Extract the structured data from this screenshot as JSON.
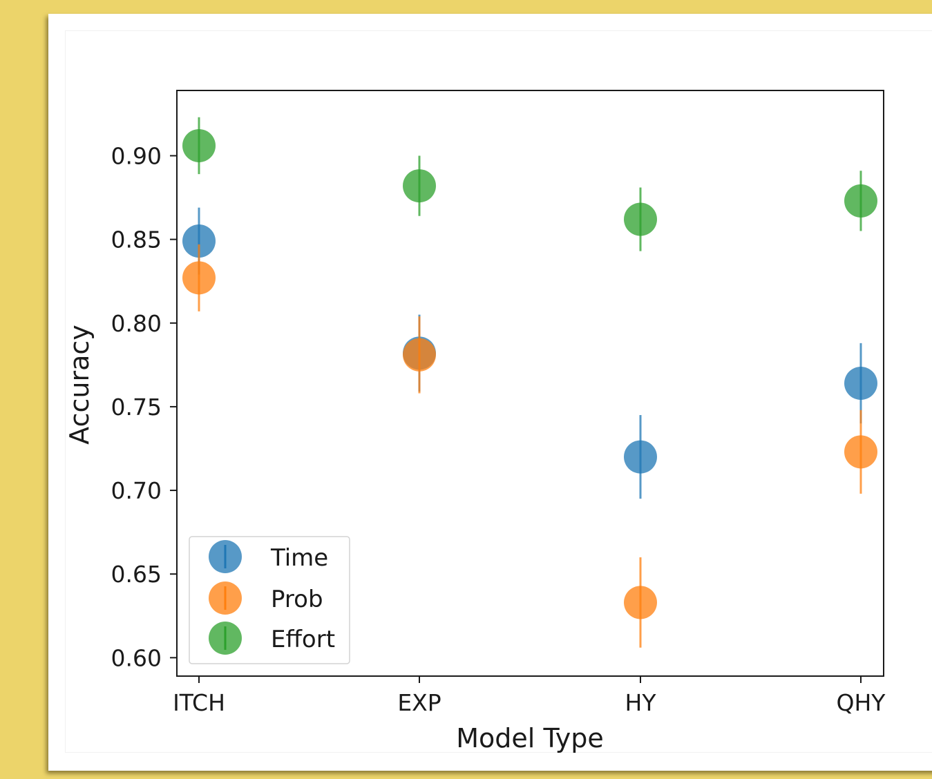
{
  "chart_data": {
    "type": "scatter",
    "title": "",
    "xlabel": "Model Type",
    "ylabel": "Accuracy",
    "categories": [
      "ITCH",
      "EXP",
      "HY",
      "QHY"
    ],
    "yticks": [
      "0.60",
      "0.65",
      "0.70",
      "0.75",
      "0.80",
      "0.85",
      "0.90"
    ],
    "ylim": [
      0.589,
      0.939
    ],
    "grid": false,
    "legend_position": "lower-left",
    "series": [
      {
        "name": "Time",
        "color": "#1f77b4",
        "values": [
          0.849,
          0.782,
          0.72,
          0.764
        ],
        "errors": [
          0.02,
          0.023,
          0.025,
          0.024
        ]
      },
      {
        "name": "Prob",
        "color": "#ff7f0e",
        "values": [
          0.827,
          0.781,
          0.633,
          0.723
        ],
        "errors": [
          0.02,
          0.023,
          0.027,
          0.025
        ]
      },
      {
        "name": "Effort",
        "color": "#2ca02c",
        "values": [
          0.906,
          0.882,
          0.862,
          0.873
        ],
        "errors": [
          0.017,
          0.018,
          0.019,
          0.018
        ]
      }
    ]
  }
}
